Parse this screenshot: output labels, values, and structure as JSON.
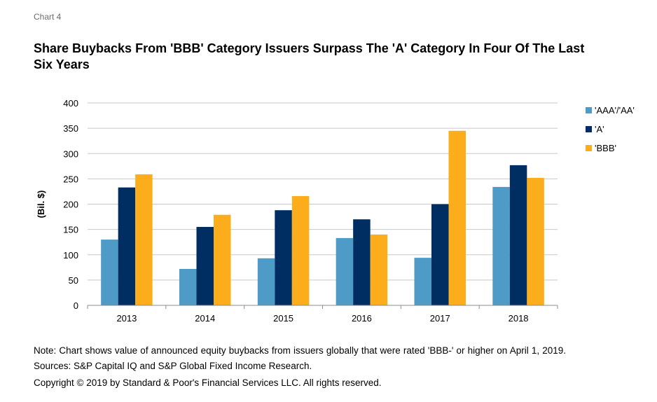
{
  "header": {
    "kicker": "Chart 4",
    "title": "Share Buybacks From 'BBB' Category Issuers Surpass The 'A' Category In Four Of The Last Six Years"
  },
  "footer": {
    "note": "Note: Chart shows value of announced equity buybacks from issuers globally that were rated 'BBB-' or higher on April 1, 2019. Sources: S&P Capital IQ and S&P Global Fixed Income Research.",
    "copyright": "Copyright © 2019 by Standard & Poor's Financial Services LLC. All rights reserved."
  },
  "chart_data": {
    "type": "bar",
    "categories": [
      "2013",
      "2014",
      "2015",
      "2016",
      "2017",
      "2018"
    ],
    "series": [
      {
        "name": "'AAA'/'AA'",
        "color": "#4f9bc7",
        "values": [
          130,
          72,
          93,
          133,
          94,
          234
        ]
      },
      {
        "name": "'A'",
        "color": "#002d62",
        "values": [
          233,
          155,
          188,
          170,
          200,
          277
        ]
      },
      {
        "name": "'BBB'",
        "color": "#fcad1c",
        "values": [
          259,
          179,
          216,
          140,
          345,
          252
        ]
      }
    ],
    "ylabel": "(Bil. $)",
    "ylim": [
      0,
      400
    ],
    "yticks": [
      0,
      50,
      100,
      150,
      200,
      250,
      300,
      350,
      400
    ],
    "grid": true,
    "legend_position": "right"
  }
}
